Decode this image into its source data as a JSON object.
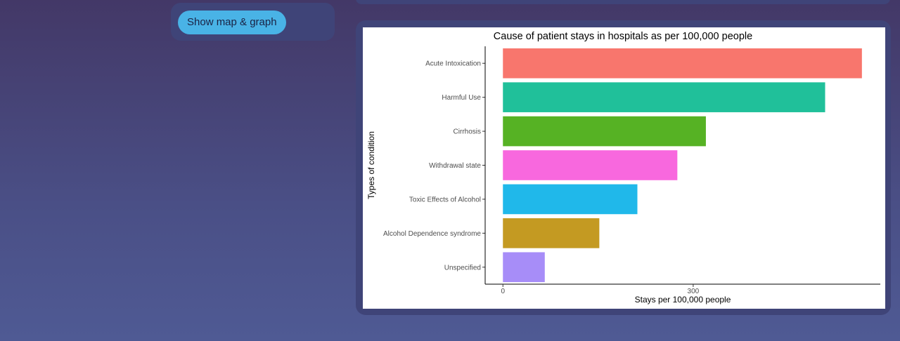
{
  "controls": {
    "show_button_label": "Show map & graph"
  },
  "chart_data": {
    "type": "bar",
    "orientation": "horizontal",
    "title": "Cause of patient stays in hospitals as per 100,000 people",
    "xlabel": "Stays per 100,000 people",
    "ylabel": "Types of condition",
    "categories": [
      "Acute Intoxication",
      "Harmful Use",
      "Cirrhosis",
      "Withdrawal state",
      "Toxic Effects of Alcohol",
      "Alcohol Dependence syndrome",
      "Unspecified"
    ],
    "values": [
      566,
      508,
      320,
      275,
      212,
      152,
      66
    ],
    "colors": [
      "#F8766D",
      "#20C09A",
      "#56B224",
      "#F868DE",
      "#20B8EA",
      "#C49A22",
      "#A78DF8"
    ],
    "xlim": [
      -28,
      595
    ],
    "xticks": [
      0,
      300
    ],
    "grid": false,
    "legend": "none"
  }
}
